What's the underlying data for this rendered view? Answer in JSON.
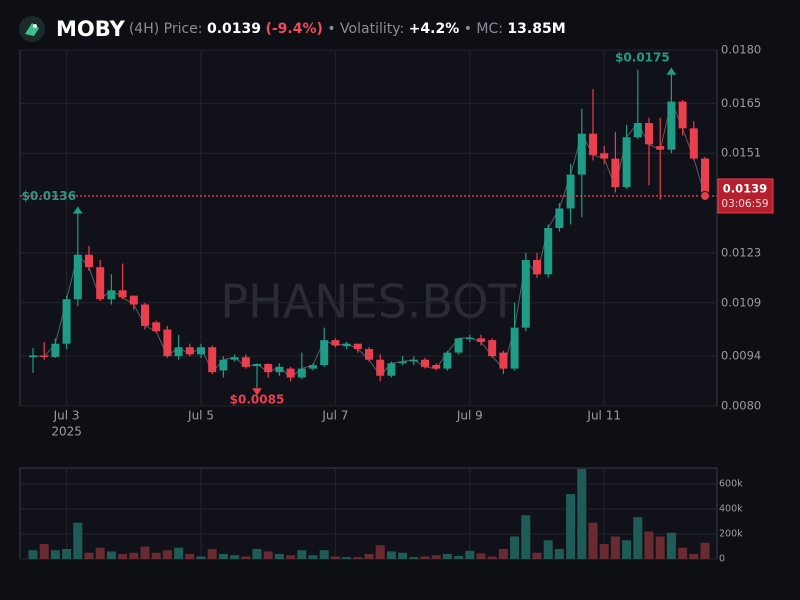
{
  "header": {
    "symbol": "MOBY",
    "interval": "(4H)",
    "price_label": "Price:",
    "price": "0.0139",
    "change": "(-9.4%)",
    "volatility_label": "• Volatility:",
    "volatility": "+4.2%",
    "mc_label": "• MC:",
    "mc": "13.85M"
  },
  "chart_data": [
    {
      "type": "candlestick",
      "watermark": "PHANES.BOT",
      "categories": [
        null,
        null,
        null,
        "Jul 3",
        null,
        null,
        null,
        null,
        null,
        null,
        null,
        null,
        null,
        null,
        null,
        "Jul 5",
        null,
        null,
        null,
        null,
        null,
        null,
        null,
        null,
        null,
        null,
        null,
        "Jul 7",
        null,
        null,
        null,
        null,
        null,
        null,
        null,
        null,
        null,
        null,
        null,
        "Jul 9",
        null,
        null,
        null,
        null,
        null,
        null,
        null,
        null,
        null,
        null,
        null,
        "Jul 11",
        null,
        null,
        null,
        null,
        null,
        null,
        null,
        null,
        null
      ],
      "x_sublabel": "2025",
      "open": [
        0.00937,
        0.00942,
        0.00938,
        0.00975,
        0.011,
        0.01225,
        0.0119,
        0.011,
        0.01125,
        0.0111,
        0.01085,
        0.01035,
        0.01015,
        0.0094,
        0.00965,
        0.00945,
        0.00965,
        0.009,
        0.0093,
        0.00937,
        0.00912,
        0.00918,
        0.00895,
        0.00905,
        0.0088,
        0.00905,
        0.00915,
        0.00985,
        0.00968,
        0.00975,
        0.0096,
        0.0093,
        0.00885,
        0.0092,
        0.00925,
        0.0093,
        0.00915,
        0.00905,
        0.0095,
        0.0099,
        0.0099,
        0.00985,
        0.0095,
        0.00905,
        0.0102,
        0.0121,
        0.0117,
        0.013,
        0.01355,
        0.0145,
        0.01565,
        0.0151,
        0.01495,
        0.01415,
        0.01555,
        0.01595,
        0.0153,
        0.0152,
        0.01655,
        0.0158,
        0.01495
      ],
      "high": [
        0.00963,
        0.0098,
        0.0099,
        0.0111,
        0.0136,
        0.0125,
        0.0121,
        0.0117,
        0.012,
        0.0111,
        0.0109,
        0.0104,
        0.01025,
        0.01,
        0.00975,
        0.00975,
        0.0097,
        0.0094,
        0.00945,
        0.00945,
        0.0092,
        0.0092,
        0.0092,
        0.0091,
        0.0095,
        0.0092,
        0.0102,
        0.0099,
        0.0098,
        0.00975,
        0.00965,
        0.00945,
        0.00925,
        0.0094,
        0.0094,
        0.00935,
        0.0092,
        0.00955,
        0.0099,
        0.01,
        0.01,
        0.0099,
        0.00955,
        0.0109,
        0.0123,
        0.0123,
        0.0131,
        0.0137,
        0.0148,
        0.01635,
        0.0169,
        0.0153,
        0.0157,
        0.0159,
        0.01745,
        0.0161,
        0.0161,
        0.0175,
        0.0166,
        0.016,
        0.015
      ],
      "low": [
        0.00893,
        0.0093,
        0.00935,
        0.0096,
        0.0108,
        0.0118,
        0.01095,
        0.01085,
        0.011,
        0.0107,
        0.01015,
        0.01005,
        0.00935,
        0.0093,
        0.0094,
        0.00935,
        0.0089,
        0.0088,
        0.00925,
        0.00905,
        0.0085,
        0.0088,
        0.00885,
        0.0087,
        0.00875,
        0.009,
        0.0091,
        0.00965,
        0.0096,
        0.0095,
        0.00925,
        0.0087,
        0.0088,
        0.00915,
        0.00915,
        0.00905,
        0.009,
        0.009,
        0.00945,
        0.0098,
        0.0097,
        0.00935,
        0.0089,
        0.009,
        0.0101,
        0.0116,
        0.0116,
        0.0129,
        0.0131,
        0.0133,
        0.0149,
        0.0148,
        0.014,
        0.0141,
        0.0155,
        0.0142,
        0.0138,
        0.0151,
        0.0156,
        0.0149,
        0.01385
      ],
      "close": [
        0.00942,
        0.00938,
        0.00975,
        0.011,
        0.01225,
        0.0119,
        0.011,
        0.01125,
        0.01105,
        0.01085,
        0.01025,
        0.0101,
        0.0094,
        0.00965,
        0.00945,
        0.00965,
        0.00895,
        0.0093,
        0.00937,
        0.0091,
        0.00918,
        0.00895,
        0.0091,
        0.0088,
        0.00905,
        0.00915,
        0.00985,
        0.0097,
        0.00975,
        0.0096,
        0.0093,
        0.00885,
        0.0092,
        0.00925,
        0.0093,
        0.0091,
        0.00905,
        0.0095,
        0.0099,
        0.00992,
        0.0098,
        0.0094,
        0.00905,
        0.0102,
        0.0121,
        0.0117,
        0.013,
        0.01355,
        0.0145,
        0.01565,
        0.01505,
        0.01495,
        0.01415,
        0.01555,
        0.01595,
        0.01535,
        0.0152,
        0.01655,
        0.0158,
        0.01495,
        0.0139
      ],
      "up_color": "#1e9c86",
      "down_color": "#ea3f4f",
      "ylim": [
        0.008,
        0.018
      ],
      "yticks": [
        {
          "value": 0.008,
          "label": "0.0080"
        },
        0.0094,
        0.0109,
        0.0123,
        0.0151,
        0.0165,
        {
          "value": 0.018,
          "label": "0.0180"
        }
      ],
      "grid": true,
      "annotations": [
        {
          "kind": "high",
          "value": 0.0175,
          "label": "$0.0175"
        },
        {
          "kind": "high",
          "value": 0.0136,
          "label": "$0.0136"
        },
        {
          "kind": "low",
          "value": 0.0085,
          "label": "$0.0085"
        }
      ],
      "last_price": {
        "value": 0.0139,
        "label": "0.0139",
        "countdown": "03:06:59"
      }
    },
    {
      "type": "bar",
      "values": [
        70000,
        120000,
        70000,
        80000,
        290000,
        50000,
        90000,
        60000,
        40000,
        50000,
        100000,
        50000,
        70000,
        90000,
        40000,
        20000,
        80000,
        40000,
        30000,
        20000,
        80000,
        60000,
        40000,
        30000,
        70000,
        30000,
        70000,
        20000,
        15000,
        15000,
        40000,
        110000,
        60000,
        50000,
        15000,
        20000,
        30000,
        40000,
        25000,
        65000,
        45000,
        20000,
        80000,
        180000,
        350000,
        50000,
        150000,
        80000,
        520000,
        720000,
        290000,
        120000,
        180000,
        150000,
        335000,
        220000,
        180000,
        210000,
        90000,
        40000,
        130000
      ],
      "up_color": "#1f5c57",
      "down_color": "#6a2a32",
      "ylim": [
        0,
        728000
      ],
      "yticks": [
        0,
        {
          "value": 200000,
          "label": "200k"
        },
        {
          "value": 400000,
          "label": "400k"
        },
        {
          "value": 600000,
          "label": "600k"
        }
      ],
      "grid": true
    }
  ]
}
